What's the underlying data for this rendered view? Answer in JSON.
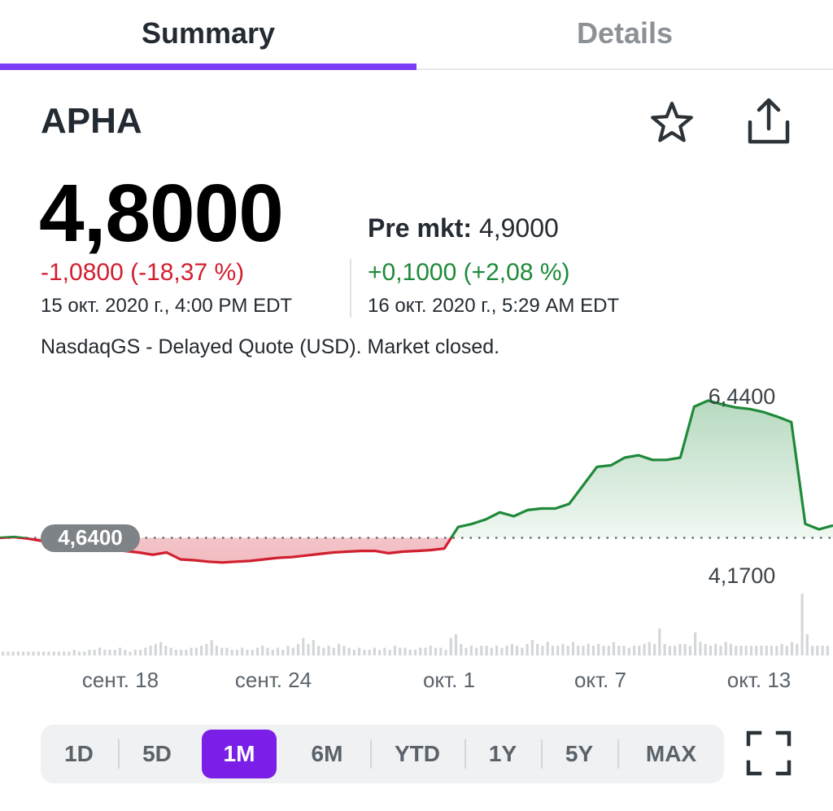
{
  "tabs": [
    {
      "label": "Summary",
      "active": true
    },
    {
      "label": "Details",
      "active": false
    }
  ],
  "quote": {
    "ticker": "APHA",
    "price": "4,8000",
    "change": "-1,0800 (-18,37 %)",
    "timestamp": "15 окт. 2020 г., 4:00 PM EDT",
    "premarket_label": "Pre mkt:",
    "premarket_price": "4,9000",
    "premarket_change": "+0,1000 (+2,08 %)",
    "premarket_timestamp": "16 окт. 2020 г., 5:29 AM EDT",
    "market_note": "NasdaqGS - Delayed Quote (USD). Market closed."
  },
  "icons": {
    "watchlist": "star-icon",
    "share": "share-icon",
    "fullscreen": "fullscreen-icon"
  },
  "colors": {
    "accent": "#7b1fe8",
    "tab_underline": "#7b3cf6",
    "negative": "#d11f2f",
    "positive": "#1f8a3a"
  },
  "chart_data": {
    "type": "line",
    "baseline_label": "4,6400",
    "high_label": "6,4400",
    "low_label": "4,1700",
    "baseline": 4.64,
    "ylim": [
      4.17,
      6.44
    ],
    "x_tick_labels": [
      "сент. 18",
      "сент. 24",
      "окт. 1",
      "окт. 7",
      "окт. 13"
    ],
    "series": [
      {
        "values": [
          4.64,
          4.65,
          4.63,
          4.6,
          4.57,
          4.55,
          4.52,
          4.5,
          4.49,
          4.47,
          4.45,
          4.42,
          4.45,
          4.36,
          4.35,
          4.33,
          4.32,
          4.33,
          4.34,
          4.36,
          4.38,
          4.39,
          4.41,
          4.43,
          4.45,
          4.46,
          4.47,
          4.47,
          4.44,
          4.46,
          4.47,
          4.48,
          4.5,
          4.78,
          4.82,
          4.88,
          4.97,
          4.92,
          5.0,
          5.02,
          5.02,
          5.08,
          5.32,
          5.56,
          5.58,
          5.68,
          5.71,
          5.65,
          5.65,
          5.68,
          6.34,
          6.42,
          6.37,
          6.33,
          6.31,
          6.27,
          6.21,
          6.14,
          4.82,
          4.75,
          4.8
        ]
      }
    ],
    "volume": [
      2,
      2,
      2,
      2,
      2,
      2,
      2,
      2,
      2,
      2,
      2,
      2,
      2,
      2,
      3,
      2,
      2,
      3,
      3,
      4,
      3,
      3,
      3,
      4,
      3,
      2,
      3,
      3,
      4,
      5,
      6,
      7,
      5,
      4,
      3,
      3,
      3,
      4,
      4,
      5,
      6,
      8,
      5,
      4,
      4,
      3,
      3,
      4,
      3,
      3,
      4,
      5,
      4,
      3,
      4,
      3,
      5,
      4,
      6,
      9,
      6,
      8,
      5,
      4,
      5,
      4,
      6,
      5,
      4,
      3,
      4,
      3,
      3,
      4,
      3,
      4,
      3,
      5,
      4,
      4,
      3,
      3,
      4,
      4,
      5,
      4,
      4,
      3,
      9,
      11,
      6,
      4,
      5,
      4,
      5,
      5,
      4,
      5,
      4,
      5,
      6,
      5,
      4,
      6,
      8,
      6,
      5,
      7,
      5,
      5,
      6,
      5,
      7,
      5,
      5,
      6,
      5,
      6,
      5,
      5,
      7,
      5,
      5,
      4,
      5,
      5,
      6,
      7,
      6,
      14,
      6,
      5,
      5,
      6,
      6,
      5,
      12,
      7,
      6,
      5,
      6,
      5,
      7,
      6,
      5,
      5,
      5,
      5,
      5,
      5,
      5,
      5,
      5,
      6,
      5,
      7,
      6,
      32,
      11,
      5,
      5,
      5,
      5
    ]
  },
  "range_selector": [
    {
      "label": "1D",
      "active": false
    },
    {
      "label": "5D",
      "active": false
    },
    {
      "label": "1M",
      "active": true
    },
    {
      "label": "6M",
      "active": false
    },
    {
      "label": "YTD",
      "active": false
    },
    {
      "label": "1Y",
      "active": false
    },
    {
      "label": "5Y",
      "active": false
    },
    {
      "label": "MAX",
      "active": false
    }
  ]
}
